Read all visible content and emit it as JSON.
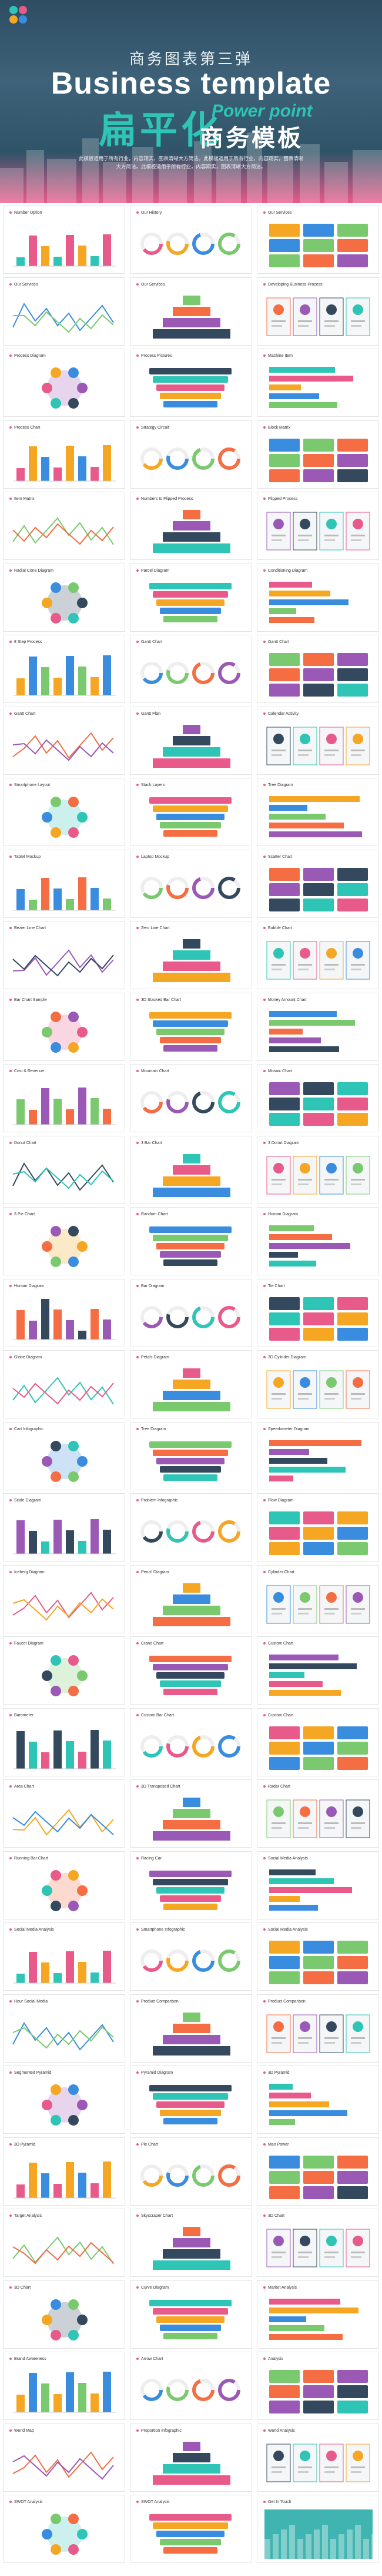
{
  "hero": {
    "subtitle_cn": "商务图表第三弹",
    "title_en": "Business template",
    "title_cn_big": "扁平化",
    "power_point": "Power point",
    "title_cn_mid": "商务模板",
    "description": "此模板适用于所有行业，内容翔实，图表清晰大方简洁。此模板适用于所有行业，内容翔实，图表清晰大方简洁。此模板适用于所有行业，内容翔实，图表清晰大方简洁。"
  },
  "palette": [
    "#2ec4b6",
    "#e85a8a",
    "#f5a623",
    "#3a8dde",
    "#7bc96f",
    "#f46d43",
    "#9b59b6",
    "#34495e"
  ],
  "slides": [
    {
      "title": "Number Option"
    },
    {
      "title": "Our History"
    },
    {
      "title": "Our Services"
    },
    {
      "title": "Our Services"
    },
    {
      "title": "Our Services"
    },
    {
      "title": "Developing Business Process"
    },
    {
      "title": "Process Diagram"
    },
    {
      "title": "Process Pictures"
    },
    {
      "title": "Machine Item"
    },
    {
      "title": "Process Chart"
    },
    {
      "title": "Strategy Circuit"
    },
    {
      "title": "Block Matrix"
    },
    {
      "title": "Item Matrix"
    },
    {
      "title": "Numbers to Flipped Process"
    },
    {
      "title": "Flipped Process"
    },
    {
      "title": "Radial Cone Diagram"
    },
    {
      "title": "Parcel Diagram"
    },
    {
      "title": "Conditioning Diagram"
    },
    {
      "title": "8 Step Process"
    },
    {
      "title": "Gantt Chart"
    },
    {
      "title": "Gantt Chart"
    },
    {
      "title": "Gantt Chart"
    },
    {
      "title": "Gantt Plan"
    },
    {
      "title": "Calendar Activity"
    },
    {
      "title": "Smartphone Layout"
    },
    {
      "title": "Stack Layers"
    },
    {
      "title": "Tree Diagram"
    },
    {
      "title": "Tablet Mockup"
    },
    {
      "title": "Laptop Mockup"
    },
    {
      "title": "Scatter Chart"
    },
    {
      "title": "Bezier Line Chart"
    },
    {
      "title": "Zero Line Chart"
    },
    {
      "title": "Bubble Chart"
    },
    {
      "title": "Bar Chart Sample"
    },
    {
      "title": "3D Stacked Bar Chart"
    },
    {
      "title": "Money Amount Chart"
    },
    {
      "title": "Cost & Revenue"
    },
    {
      "title": "Mountain Chart"
    },
    {
      "title": "Mosaic Chart"
    },
    {
      "title": "Donut Chart"
    },
    {
      "title": "3 Bar Chart"
    },
    {
      "title": "3 Donut Diagram"
    },
    {
      "title": "3 Pie Chart"
    },
    {
      "title": "Random Chart"
    },
    {
      "title": "Human Diagram"
    },
    {
      "title": "Human Diagram"
    },
    {
      "title": "Bar Diagram"
    },
    {
      "title": "Tie Chart"
    },
    {
      "title": "Globe Diagram"
    },
    {
      "title": "Petals Diagram"
    },
    {
      "title": "3D Cylinder Diagram"
    },
    {
      "title": "Cart Infographic"
    },
    {
      "title": "Tree Diagram"
    },
    {
      "title": "Speedometer Diagram"
    },
    {
      "title": "Scale Diagram"
    },
    {
      "title": "Problem Infographic"
    },
    {
      "title": "Flow Diagram"
    },
    {
      "title": "Iceberg Diagram"
    },
    {
      "title": "Pencil Diagram"
    },
    {
      "title": "Cylinder Chart"
    },
    {
      "title": "Faucet Diagram"
    },
    {
      "title": "Crane Chart"
    },
    {
      "title": "Custom Chart"
    },
    {
      "title": "Barometer"
    },
    {
      "title": "Custom Bar Chart"
    },
    {
      "title": "Custom Chart"
    },
    {
      "title": "Area Chart"
    },
    {
      "title": "3D Transposed Chart"
    },
    {
      "title": "Radar Chart"
    },
    {
      "title": "Running Bar Chart"
    },
    {
      "title": "Racing Car"
    },
    {
      "title": "Social Media Analysis"
    },
    {
      "title": "Social Media Analysis"
    },
    {
      "title": "Smartphone Infographic"
    },
    {
      "title": "Social Media Analysis"
    },
    {
      "title": "Hour Social Media"
    },
    {
      "title": "Product Comparison"
    },
    {
      "title": "Product Comparison"
    },
    {
      "title": "Segmented Pyramid"
    },
    {
      "title": "Pyramid Diagram"
    },
    {
      "title": "3D Pyramid"
    },
    {
      "title": "3D Pyramid"
    },
    {
      "title": "Pie Chart"
    },
    {
      "title": "Man Power"
    },
    {
      "title": "Target Analysis"
    },
    {
      "title": "Skyscraper Chart"
    },
    {
      "title": "3D Chart"
    },
    {
      "title": "3D Chart"
    },
    {
      "title": "Curve Diagram"
    },
    {
      "title": "Market Analysis"
    },
    {
      "title": "Brand Awareness"
    },
    {
      "title": "Arrow Chart"
    },
    {
      "title": "Analysis"
    },
    {
      "title": "World Map"
    },
    {
      "title": "Proportion Infographic"
    },
    {
      "title": "World Analysis"
    },
    {
      "title": "SWOT Analysis"
    },
    {
      "title": "SWOT Analysis"
    },
    {
      "title": "Get In Touch"
    }
  ]
}
